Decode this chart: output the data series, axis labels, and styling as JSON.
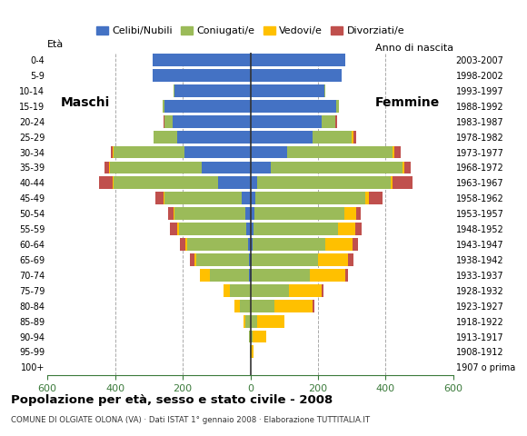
{
  "age_groups": [
    "100+",
    "95-99",
    "90-94",
    "85-89",
    "80-84",
    "75-79",
    "70-74",
    "65-69",
    "60-64",
    "55-59",
    "50-54",
    "45-49",
    "40-44",
    "35-39",
    "30-34",
    "25-29",
    "20-24",
    "15-19",
    "10-14",
    "5-9",
    "0-4"
  ],
  "birth_years": [
    "1907 o prima",
    "1908-1912",
    "1913-1917",
    "1918-1922",
    "1923-1927",
    "1928-1932",
    "1933-1937",
    "1938-1942",
    "1943-1947",
    "1948-1952",
    "1953-1957",
    "1958-1962",
    "1963-1967",
    "1968-1972",
    "1973-1977",
    "1978-1982",
    "1983-1987",
    "1988-1992",
    "1993-1997",
    "1998-2002",
    "2003-2007"
  ],
  "males": {
    "celibe": [
      0,
      0,
      0,
      0,
      0,
      0,
      5,
      5,
      8,
      12,
      15,
      25,
      95,
      145,
      195,
      215,
      230,
      255,
      225,
      290,
      290
    ],
    "coniugato": [
      0,
      2,
      5,
      15,
      30,
      60,
      115,
      155,
      180,
      200,
      210,
      230,
      310,
      270,
      210,
      70,
      25,
      5,
      2,
      0,
      0
    ],
    "vedovo": [
      0,
      0,
      0,
      5,
      18,
      20,
      30,
      5,
      5,
      5,
      3,
      2,
      2,
      2,
      2,
      0,
      0,
      0,
      0,
      0,
      0
    ],
    "divorziato": [
      0,
      0,
      0,
      0,
      0,
      0,
      0,
      15,
      15,
      20,
      15,
      25,
      40,
      15,
      5,
      2,
      2,
      0,
      0,
      0,
      0
    ]
  },
  "females": {
    "celibe": [
      0,
      0,
      0,
      0,
      0,
      0,
      5,
      5,
      8,
      10,
      12,
      15,
      20,
      60,
      110,
      185,
      210,
      255,
      220,
      270,
      280
    ],
    "coniugato": [
      0,
      2,
      8,
      20,
      70,
      115,
      170,
      195,
      215,
      250,
      265,
      325,
      395,
      390,
      310,
      115,
      40,
      8,
      2,
      0,
      0
    ],
    "vedovo": [
      2,
      8,
      40,
      80,
      115,
      95,
      105,
      90,
      80,
      50,
      35,
      10,
      5,
      5,
      5,
      5,
      2,
      0,
      0,
      0,
      0
    ],
    "divorziato": [
      0,
      0,
      0,
      2,
      5,
      5,
      10,
      15,
      15,
      20,
      15,
      40,
      60,
      20,
      20,
      8,
      5,
      0,
      0,
      0,
      0
    ]
  },
  "colors": {
    "celibe": "#4472c4",
    "coniugato": "#9bbb59",
    "vedovo": "#ffc000",
    "divorziato": "#c0504d"
  },
  "legend_labels": [
    "Celibi/Nubili",
    "Coniugati/e",
    "Vedovi/e",
    "Divorziati/e"
  ],
  "title": "Popolazione per età, sesso e stato civile - 2008",
  "subtitle": "COMUNE DI OLGIATE OLONA (VA) · Dati ISTAT 1° gennaio 2008 · Elaborazione TUTTITALIA.IT",
  "xlim": 600,
  "background_color": "#ffffff",
  "grid_color": "#aaaaaa",
  "xtick_color": "#3a7a3a"
}
